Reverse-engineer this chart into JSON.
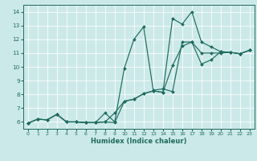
{
  "xlabel": "Humidex (Indice chaleur)",
  "xlim": [
    -0.5,
    23.5
  ],
  "ylim": [
    5.5,
    14.5
  ],
  "xticks": [
    0,
    1,
    2,
    3,
    4,
    5,
    6,
    7,
    8,
    9,
    10,
    11,
    12,
    13,
    14,
    15,
    16,
    17,
    18,
    19,
    20,
    21,
    22,
    23
  ],
  "yticks": [
    6,
    7,
    8,
    9,
    10,
    11,
    12,
    13,
    14
  ],
  "bg_color": "#cce9e9",
  "line_color": "#1e6b5e",
  "curve1_x": [
    0,
    1,
    2,
    3,
    4,
    5,
    6,
    7,
    8,
    9,
    10,
    11,
    12,
    13,
    14,
    15,
    16,
    17,
    18,
    19,
    20,
    21,
    22,
    23
  ],
  "curve1_y": [
    5.9,
    6.2,
    6.15,
    6.55,
    6.0,
    6.0,
    5.95,
    5.95,
    6.0,
    6.65,
    7.5,
    7.65,
    8.05,
    8.25,
    8.15,
    13.5,
    13.1,
    14.0,
    11.8,
    11.45,
    11.1,
    11.05,
    10.95,
    11.2
  ],
  "curve2_x": [
    0,
    1,
    2,
    3,
    4,
    5,
    6,
    7,
    8,
    9,
    10,
    11,
    12,
    13,
    14,
    15,
    16,
    17,
    18,
    19,
    20,
    21,
    22,
    23
  ],
  "curve2_y": [
    5.9,
    6.2,
    6.15,
    6.55,
    6.0,
    6.0,
    5.95,
    5.95,
    6.0,
    5.95,
    7.5,
    7.65,
    8.05,
    8.25,
    8.15,
    10.1,
    11.5,
    11.8,
    10.2,
    10.5,
    11.1,
    11.05,
    10.95,
    11.2
  ],
  "curve3_x": [
    0,
    1,
    2,
    3,
    4,
    5,
    6,
    7,
    8,
    9,
    10,
    11,
    12,
    13,
    14,
    15,
    16,
    17,
    18,
    19,
    20,
    21,
    22,
    23
  ],
  "curve3_y": [
    5.9,
    6.2,
    6.15,
    6.55,
    6.0,
    6.0,
    5.95,
    5.95,
    6.65,
    6.0,
    9.9,
    12.0,
    12.9,
    8.3,
    8.4,
    8.2,
    11.8,
    11.8,
    11.0,
    11.0,
    11.0,
    11.05,
    10.95,
    11.2
  ]
}
